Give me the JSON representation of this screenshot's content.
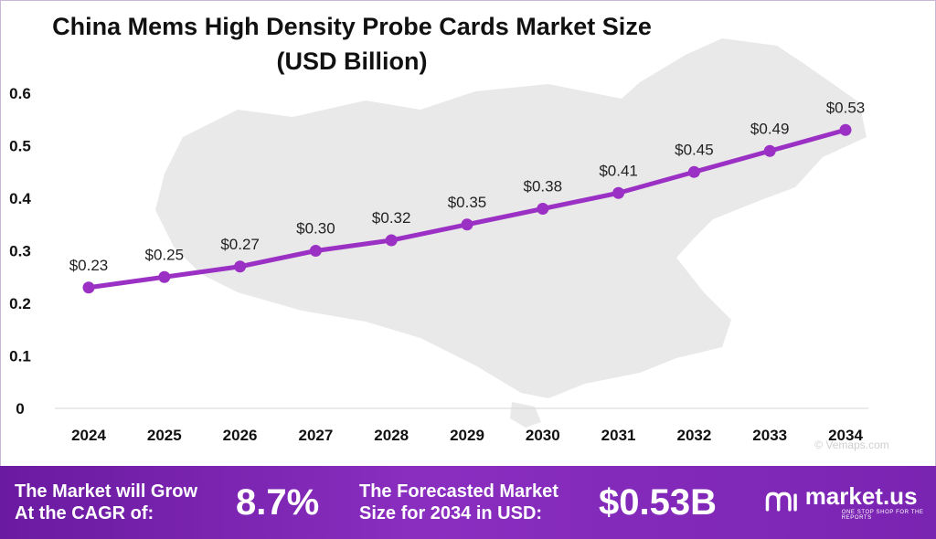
{
  "chart_data": {
    "type": "line",
    "title": "China Mems High Density Probe Cards Market Size",
    "subtitle": "(USD Billion)",
    "categories": [
      "2024",
      "2025",
      "2026",
      "2027",
      "2028",
      "2029",
      "2030",
      "2031",
      "2032",
      "2033",
      "2034"
    ],
    "values": [
      0.23,
      0.25,
      0.27,
      0.3,
      0.32,
      0.35,
      0.38,
      0.41,
      0.45,
      0.49,
      0.53
    ],
    "data_labels": [
      "$0.23",
      "$0.25",
      "$0.27",
      "$0.30",
      "$0.32",
      "$0.35",
      "$0.38",
      "$0.41",
      "$0.45",
      "$0.49",
      "$0.53"
    ],
    "y_ticks": [
      "0",
      "0.1",
      "0.2",
      "0.3",
      "0.4",
      "0.5",
      "0.6"
    ],
    "ylim": [
      0,
      0.6
    ],
    "grid": false,
    "legend": "none",
    "line_color": "#9b30c4",
    "watermark": "© Vemaps.com"
  },
  "footer": {
    "cagr_label_line1": "The Market will Grow",
    "cagr_label_line2": "At the CAGR of:",
    "cagr_value": "8.7%",
    "forecast_label_line1": "The Forecasted Market",
    "forecast_label_line2": "Size for 2034 in USD:",
    "forecast_value": "$0.53B",
    "brand_name": "market.us",
    "brand_tagline": "ONE STOP SHOP FOR THE REPORTS",
    "brand_icon": "market-us-logo-icon"
  }
}
